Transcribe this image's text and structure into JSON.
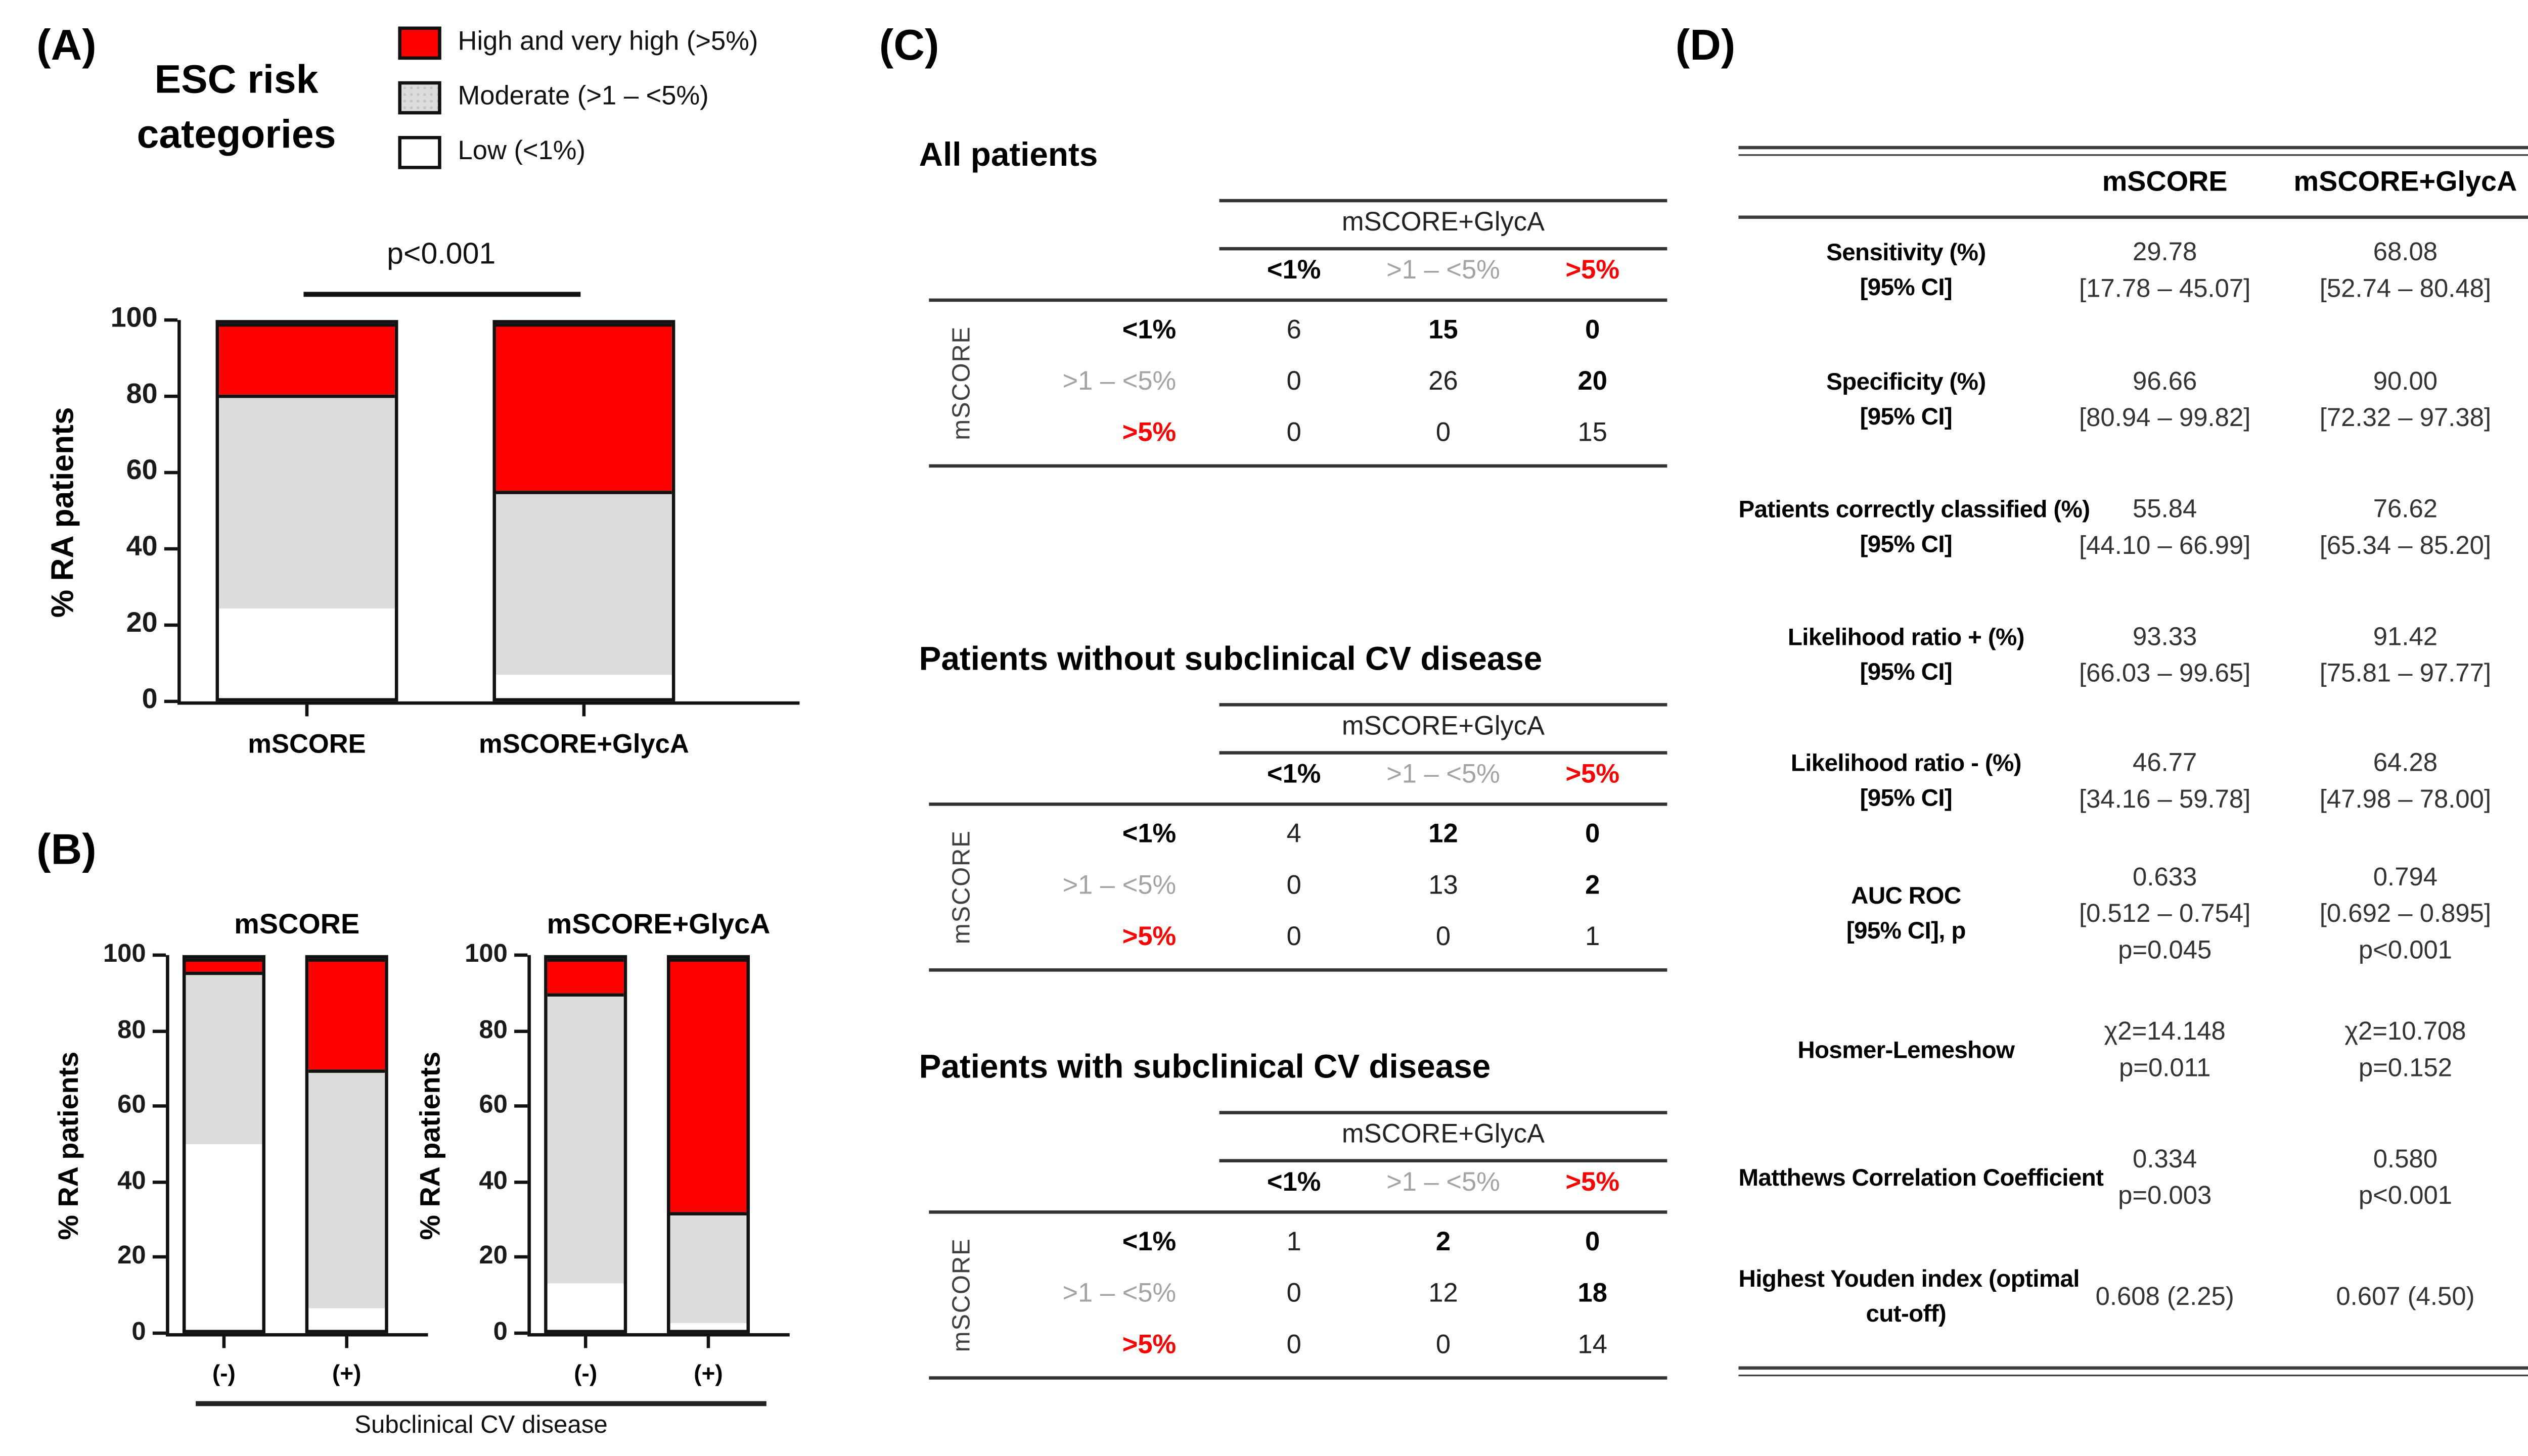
{
  "panels": {
    "A": {
      "label": "(A)",
      "title_lines": [
        "ESC risk",
        "categories"
      ],
      "legend": [
        {
          "label": "High and very high (>5%)",
          "color": "#ff0000"
        },
        {
          "label": "Moderate (>1 – <5%)",
          "color": "#dcdcdc"
        },
        {
          "label": "Low (<1%)",
          "color": "#ffffff"
        }
      ],
      "p_annotation": "p<0.001"
    },
    "B": {
      "label": "(B)",
      "axis_caption": "Subclinical CV disease"
    },
    "C": {
      "label": "(C)"
    },
    "D": {
      "label": "(D)"
    }
  },
  "chart_data": [
    {
      "type": "stacked-bar",
      "title": "",
      "ylabel": "% RA patients",
      "categories": [
        "mSCORE",
        "mSCORE+GlycA"
      ],
      "series": [
        {
          "name": "Low (<1%)",
          "color": "#ffffff",
          "values": [
            24,
            6
          ]
        },
        {
          "name": "Moderate (>1 – <5%)",
          "color": "#dcdcdc",
          "values": [
            57,
            49.5
          ]
        },
        {
          "name": "High and very high (>5%)",
          "color": "#ff0000",
          "values": [
            19,
            44.5
          ]
        }
      ],
      "yticks": [
        0,
        20,
        40,
        60,
        80,
        100
      ],
      "ylim": [
        0,
        100
      ],
      "annotation": "p<0.001",
      "legend_position": "top-left"
    },
    {
      "type": "stacked-bar",
      "title": "mSCORE",
      "ylabel": "% RA patients",
      "categories": [
        "(-)",
        "(+)"
      ],
      "series": [
        {
          "name": "Low (<1%)",
          "color": "#ffffff",
          "values": [
            50,
            6
          ]
        },
        {
          "name": "Moderate (>1 – <5%)",
          "color": "#dcdcdc",
          "values": [
            46.5,
            64
          ]
        },
        {
          "name": "High and very high (>5%)",
          "color": "#ff0000",
          "values": [
            3.5,
            30
          ]
        }
      ],
      "yticks": [
        0,
        20,
        40,
        60,
        80,
        100
      ],
      "ylim": [
        0,
        100
      ],
      "xgroup": "Subclinical CV disease"
    },
    {
      "type": "stacked-bar",
      "title": "mSCORE+GlycA",
      "ylabel": "% RA patients",
      "categories": [
        "(-)",
        "(+)"
      ],
      "series": [
        {
          "name": "Low (<1%)",
          "color": "#ffffff",
          "values": [
            12.5,
            2
          ]
        },
        {
          "name": "Moderate (>1 – <5%)",
          "color": "#dcdcdc",
          "values": [
            78,
            29.5
          ]
        },
        {
          "name": "High and very high (>5%)",
          "color": "#ff0000",
          "values": [
            9.5,
            68.5
          ]
        }
      ],
      "yticks": [
        0,
        20,
        40,
        60,
        80,
        100
      ],
      "ylim": [
        0,
        100
      ],
      "xgroup": "Subclinical CV disease"
    }
  ],
  "matrices": [
    {
      "title": "All patients",
      "col_group": "mSCORE+GlycA",
      "row_group": "mSCORE",
      "col_headers": [
        "<1%",
        ">1 – <5%",
        ">5%"
      ],
      "row_headers": [
        "<1%",
        ">1 – <5%",
        ">5%"
      ],
      "values": [
        [
          6,
          15,
          0
        ],
        [
          0,
          26,
          20
        ],
        [
          0,
          0,
          15
        ]
      ],
      "bold": [
        [
          false,
          true,
          true
        ],
        [
          false,
          false,
          true
        ],
        [
          false,
          false,
          false
        ]
      ]
    },
    {
      "title": "Patients without subclinical CV disease",
      "col_group": "mSCORE+GlycA",
      "row_group": "mSCORE",
      "col_headers": [
        "<1%",
        ">1 – <5%",
        ">5%"
      ],
      "row_headers": [
        "<1%",
        ">1 – <5%",
        ">5%"
      ],
      "values": [
        [
          4,
          12,
          0
        ],
        [
          0,
          13,
          2
        ],
        [
          0,
          0,
          1
        ]
      ],
      "bold": [
        [
          false,
          true,
          true
        ],
        [
          false,
          false,
          true
        ],
        [
          false,
          false,
          false
        ]
      ]
    },
    {
      "title": "Patients with subclinical CV disease",
      "col_group": "mSCORE+GlycA",
      "row_group": "mSCORE",
      "col_headers": [
        "<1%",
        ">1 – <5%",
        ">5%"
      ],
      "row_headers": [
        "<1%",
        ">1 – <5%",
        ">5%"
      ],
      "values": [
        [
          1,
          2,
          0
        ],
        [
          0,
          12,
          18
        ],
        [
          0,
          0,
          14
        ]
      ],
      "bold": [
        [
          false,
          true,
          true
        ],
        [
          false,
          false,
          true
        ],
        [
          false,
          false,
          false
        ]
      ]
    }
  ],
  "d_table": {
    "col_headers": [
      "mSCORE",
      "mSCORE+GlycA"
    ],
    "rows": [
      {
        "label": [
          "Sensitivity (%)",
          "[95% CI]"
        ],
        "mscore": [
          "29.78",
          "[17.78 – 45.07]"
        ],
        "glyca": [
          "68.08",
          "[52.74 – 80.48]"
        ]
      },
      {
        "label": [
          "Specificity (%)",
          "[95% CI]"
        ],
        "mscore": [
          "96.66",
          "[80.94 – 99.82]"
        ],
        "glyca": [
          "90.00",
          "[72.32 – 97.38]"
        ]
      },
      {
        "label": [
          "Patients correctly classified (%)",
          "[95% CI]"
        ],
        "mscore": [
          "55.84",
          "[44.10 – 66.99]"
        ],
        "glyca": [
          "76.62",
          "[65.34 – 85.20]"
        ]
      },
      {
        "label": [
          "Likelihood ratio + (%)",
          "[95% CI]"
        ],
        "mscore": [
          "93.33",
          "[66.03 – 99.65]"
        ],
        "glyca": [
          "91.42",
          "[75.81 – 97.77]"
        ]
      },
      {
        "label": [
          "Likelihood ratio - (%)",
          "[95% CI]"
        ],
        "mscore": [
          "46.77",
          "[34.16 – 59.78]"
        ],
        "glyca": [
          "64.28",
          "[47.98 – 78.00]"
        ]
      },
      {
        "label": [
          "AUC ROC",
          "[95% CI], p"
        ],
        "mscore": [
          "0.633",
          "[0.512 – 0.754]",
          "p=0.045"
        ],
        "glyca": [
          "0.794",
          "[0.692 – 0.895]",
          "p<0.001"
        ]
      },
      {
        "label": [
          "Hosmer-Lemeshow"
        ],
        "mscore": [
          "χ2=14.148",
          "p=0.011"
        ],
        "glyca": [
          "χ2=10.708",
          "p=0.152"
        ]
      },
      {
        "label": [
          "Matthews Correlation Coefficient"
        ],
        "mscore": [
          "0.334",
          "p=0.003"
        ],
        "glyca": [
          "0.580",
          "p<0.001"
        ]
      },
      {
        "label": [
          "Highest Youden index (optimal",
          "cut-off)"
        ],
        "mscore": [
          "0.608 (2.25)"
        ],
        "glyca": [
          "0.607 (4.50)"
        ]
      }
    ]
  }
}
